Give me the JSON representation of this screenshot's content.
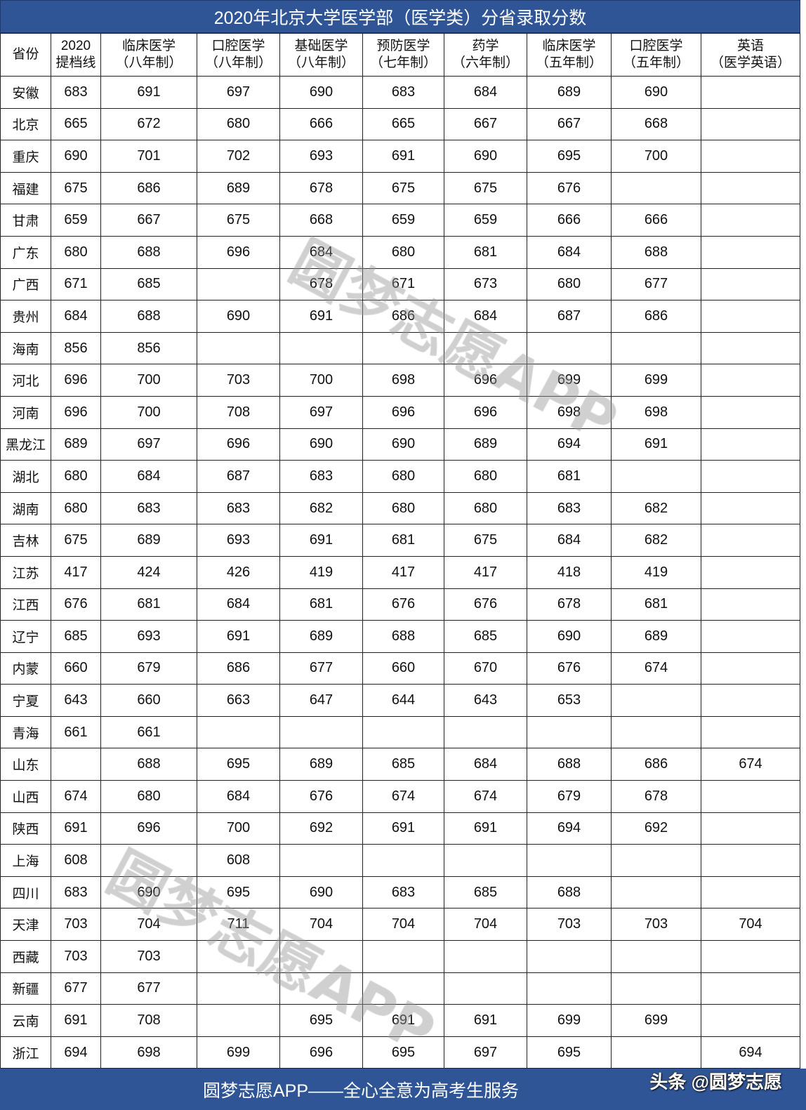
{
  "title": "2020年北京大学医学部（医学类）分省录取分数",
  "headers": [
    "省份",
    "2020\n提档线",
    "临床医学\n（八年制）",
    "口腔医学\n（八年制）",
    "基础医学\n（八年制）",
    "预防医学\n（七年制）",
    "药学\n（六年制）",
    "临床医学\n（五年制）",
    "口腔医学\n（五年制）",
    "英语\n（医学英语）"
  ],
  "rows": [
    [
      "安徽",
      "683",
      "691",
      "697",
      "690",
      "683",
      "684",
      "689",
      "690",
      ""
    ],
    [
      "北京",
      "665",
      "672",
      "680",
      "666",
      "665",
      "667",
      "667",
      "668",
      ""
    ],
    [
      "重庆",
      "690",
      "701",
      "702",
      "693",
      "691",
      "690",
      "695",
      "700",
      ""
    ],
    [
      "福建",
      "675",
      "686",
      "689",
      "678",
      "675",
      "675",
      "676",
      "",
      ""
    ],
    [
      "甘肃",
      "659",
      "667",
      "675",
      "668",
      "659",
      "659",
      "666",
      "666",
      ""
    ],
    [
      "广东",
      "680",
      "688",
      "696",
      "684",
      "680",
      "681",
      "684",
      "688",
      ""
    ],
    [
      "广西",
      "671",
      "685",
      "",
      "678",
      "671",
      "673",
      "680",
      "677",
      ""
    ],
    [
      "贵州",
      "684",
      "688",
      "690",
      "691",
      "686",
      "684",
      "687",
      "686",
      ""
    ],
    [
      "海南",
      "856",
      "856",
      "",
      "",
      "",
      "",
      "",
      "",
      ""
    ],
    [
      "河北",
      "696",
      "700",
      "703",
      "700",
      "698",
      "696",
      "699",
      "699",
      ""
    ],
    [
      "河南",
      "696",
      "700",
      "708",
      "697",
      "696",
      "696",
      "698",
      "698",
      ""
    ],
    [
      "黑龙江",
      "689",
      "697",
      "696",
      "690",
      "690",
      "689",
      "694",
      "691",
      ""
    ],
    [
      "湖北",
      "680",
      "684",
      "687",
      "683",
      "680",
      "680",
      "681",
      "",
      ""
    ],
    [
      "湖南",
      "680",
      "683",
      "683",
      "682",
      "680",
      "680",
      "683",
      "682",
      ""
    ],
    [
      "吉林",
      "675",
      "689",
      "693",
      "691",
      "681",
      "675",
      "684",
      "682",
      ""
    ],
    [
      "江苏",
      "417",
      "424",
      "426",
      "419",
      "417",
      "417",
      "418",
      "419",
      ""
    ],
    [
      "江西",
      "676",
      "681",
      "684",
      "681",
      "676",
      "676",
      "678",
      "681",
      ""
    ],
    [
      "辽宁",
      "685",
      "693",
      "691",
      "689",
      "688",
      "685",
      "690",
      "689",
      ""
    ],
    [
      "内蒙",
      "660",
      "679",
      "686",
      "677",
      "660",
      "670",
      "676",
      "674",
      ""
    ],
    [
      "宁夏",
      "643",
      "660",
      "663",
      "647",
      "644",
      "643",
      "653",
      "",
      ""
    ],
    [
      "青海",
      "661",
      "661",
      "",
      "",
      "",
      "",
      "",
      "",
      ""
    ],
    [
      "山东",
      "",
      "688",
      "695",
      "689",
      "685",
      "684",
      "688",
      "686",
      "674"
    ],
    [
      "山西",
      "674",
      "680",
      "684",
      "676",
      "674",
      "674",
      "679",
      "678",
      ""
    ],
    [
      "陕西",
      "691",
      "696",
      "700",
      "692",
      "691",
      "691",
      "694",
      "692",
      ""
    ],
    [
      "上海",
      "608",
      "",
      "608",
      "",
      "",
      "",
      "",
      "",
      ""
    ],
    [
      "四川",
      "683",
      "690",
      "695",
      "690",
      "683",
      "685",
      "688",
      "",
      ""
    ],
    [
      "天津",
      "703",
      "704",
      "711",
      "704",
      "704",
      "704",
      "703",
      "703",
      "704"
    ],
    [
      "西藏",
      "703",
      "703",
      "",
      "",
      "",
      "",
      "",
      "",
      ""
    ],
    [
      "新疆",
      "677",
      "677",
      "",
      "",
      "",
      "",
      "",
      "",
      ""
    ],
    [
      "云南",
      "691",
      "708",
      "",
      "695",
      "691",
      "691",
      "699",
      "699",
      ""
    ],
    [
      "浙江",
      "694",
      "698",
      "699",
      "696",
      "695",
      "697",
      "695",
      "",
      "694"
    ]
  ],
  "footer": "圆梦志愿APP——全心全意为高考生服务",
  "credit": "头条 @圆梦志愿",
  "watermark": "圆梦志愿APP",
  "colors": {
    "banner": "#2f5597",
    "border": "#222222"
  }
}
